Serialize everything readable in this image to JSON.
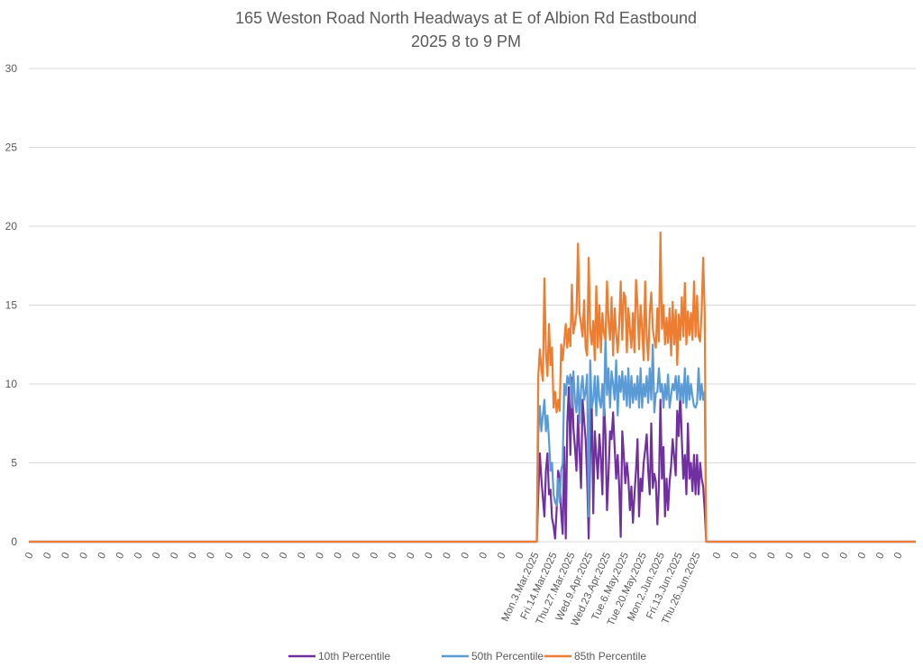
{
  "chart_data": {
    "type": "line",
    "title": "165 Weston Road North Headways at E of Albion Rd Eastbound",
    "subtitle": "2025 8 to 9 PM",
    "xlabel": "",
    "ylabel": "",
    "ylim": [
      0,
      30
    ],
    "yticks": [
      "0",
      "5",
      "10",
      "15",
      "20",
      "25",
      "30"
    ],
    "grid": true,
    "legend_position": "bottom",
    "zero_label": "0",
    "lead_zero_count": 28,
    "trail_zero_count": 11,
    "date_labels": [
      "Mon.3.Mar.2025",
      "Fri.14.Mar.2025",
      "Thu.27.Mar.2025",
      "Wed.9.Apr.2025",
      "Wed.23.Apr.2025",
      "Tue.6.May.2025",
      "Tue.20.May.2025",
      "Mon.2.Jun.2025",
      "Fri.13.Jun.2025",
      "Thu.26.Jun.2025"
    ],
    "series": [
      {
        "name": "10th Percentile",
        "color": "#7030A0",
        "values": [
          0,
          3.0,
          5.6,
          4.0,
          2.8,
          1.6,
          4.5,
          5.6,
          3.0,
          3.3,
          1.5,
          1.0,
          0.2,
          2.0,
          4.5,
          4.0,
          1.8,
          0.5,
          6.0,
          0.2,
          7.5,
          9.8,
          5.5,
          10.4,
          7.2,
          6.0,
          4.5,
          8.0,
          5.7,
          3.4,
          9.0,
          7.7,
          6.5,
          4.0,
          0.2,
          5.5,
          9.0,
          1.8,
          7.0,
          5.5,
          4.0,
          6.8,
          5.3,
          3.0,
          9.0,
          6.8,
          2.0,
          4.3,
          7.0,
          6.5,
          8.2,
          6.0,
          4.0,
          5.5,
          3.5,
          0.3,
          7.0,
          5.5,
          3.7,
          5.0,
          4.0,
          2.0,
          3.5,
          1.2,
          3.0,
          4.5,
          6.5,
          1.6,
          4.0,
          3.2,
          5.0,
          5.8,
          6.8,
          4.5,
          3.0,
          7.5,
          3.4,
          4.3,
          3.8,
          1.1,
          3.5,
          9.0,
          4.0,
          6.0,
          1.6,
          4.0,
          2.0,
          3.8,
          4.8,
          6.5,
          5.4,
          4.2,
          8.3,
          6.7,
          9.5,
          6.5,
          4.0,
          5.5,
          3.0,
          7.5,
          4.0,
          5.0,
          3.2,
          5.5,
          3.0,
          5.5,
          3.0,
          5.0,
          4.0,
          3.5,
          2.0,
          0
        ]
      },
      {
        "name": "50th Percentile",
        "color": "#5B9BD5",
        "values": [
          0,
          6.8,
          8.6,
          7.0,
          8.0,
          9.0,
          7.0,
          8.0,
          6.5,
          4.5,
          5.0,
          3.0,
          2.5,
          2.3,
          4.0,
          2.5,
          4.5,
          5.0,
          10.0,
          9.3,
          10.5,
          10.0,
          10.6,
          8.5,
          10.8,
          9.0,
          8.2,
          10.5,
          7.5,
          9.7,
          10.5,
          9.0,
          9.5,
          10.6,
          1.6,
          11.5,
          8.5,
          9.0,
          10.5,
          8.0,
          10.5,
          9.0,
          8.5,
          10.0,
          8.0,
          13.0,
          9.3,
          11.0,
          8.5,
          10.8,
          10.0,
          9.0,
          11.5,
          8.0,
          10.5,
          9.5,
          10.8,
          9.0,
          10.5,
          8.6,
          11.0,
          8.5,
          10.5,
          8.8,
          10.0,
          9.0,
          10.5,
          8.5,
          11.0,
          8.5,
          10.0,
          9.2,
          10.5,
          8.8,
          11.0,
          9.0,
          12.5,
          8.2,
          9.4,
          9.5,
          11.0,
          9.5,
          10.0,
          8.5,
          10.0,
          9.0,
          10.6,
          8.5,
          9.3,
          10.0,
          9.6,
          10.5,
          9.0,
          10.5,
          9.0,
          10.0,
          8.8,
          11.0,
          8.5,
          10.5,
          9.0,
          10.0,
          9.2,
          8.6,
          8.5,
          8.8,
          11.0,
          9.0,
          10.0,
          9.0,
          9.5,
          0
        ]
      },
      {
        "name": "85th Percentile",
        "color": "#ED7D31",
        "values": [
          0,
          10.5,
          12.2,
          11.0,
          10.2,
          16.7,
          12.0,
          10.5,
          13.8,
          11.2,
          12.3,
          8.5,
          9.5,
          8.2,
          9.0,
          8.3,
          12.5,
          11.5,
          12.7,
          13.8,
          12.3,
          13.5,
          12.4,
          16.3,
          13.2,
          13.8,
          14.5,
          18.9,
          14.5,
          13.8,
          13.0,
          15.3,
          12.3,
          11.8,
          18.0,
          13.5,
          12.5,
          14.0,
          11.5,
          16.2,
          12.3,
          15.0,
          12.0,
          14.5,
          13.2,
          12.8,
          16.5,
          14.0,
          12.8,
          15.5,
          11.8,
          14.8,
          13.2,
          12.0,
          13.8,
          16.5,
          12.8,
          15.8,
          15.5,
          12.0,
          14.8,
          13.5,
          12.3,
          14.5,
          12.0,
          16.6,
          15.0,
          12.2,
          15.0,
          13.5,
          11.5,
          16.5,
          13.0,
          11.5,
          14.5,
          15.8,
          13.5,
          12.8,
          12.3,
          14.8,
          12.7,
          19.6,
          13.5,
          15.0,
          12.5,
          14.2,
          12.6,
          14.8,
          11.8,
          15.2,
          12.5,
          14.7,
          11.2,
          14.4,
          12.8,
          15.5,
          13.0,
          16.4,
          12.5,
          14.6,
          13.1,
          14.5,
          12.8,
          16.5,
          13.0,
          15.6,
          13.0,
          12.7,
          14.6,
          18.0,
          14.5,
          0
        ]
      }
    ]
  }
}
